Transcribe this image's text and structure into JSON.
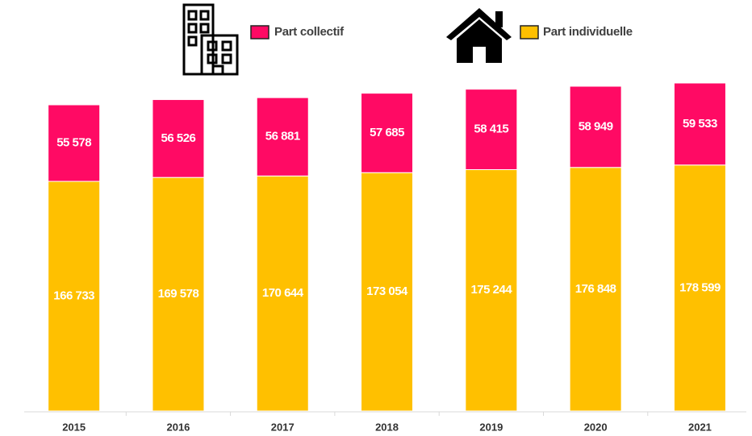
{
  "chart_data": {
    "type": "stacked_bar",
    "categories": [
      "2015",
      "2016",
      "2017",
      "2018",
      "2019",
      "2020",
      "2021"
    ],
    "series": [
      {
        "name": "Part collectif",
        "color": "#ff0a64",
        "values": [
          55578,
          56526,
          56881,
          57685,
          58415,
          58949,
          59533
        ],
        "value_labels": [
          "55 578",
          "56 526",
          "56 881",
          "57 685",
          "58 415",
          "58 949",
          "59 533"
        ]
      },
      {
        "name": "Part individuelle",
        "color": "#ffc000",
        "values": [
          166733,
          169578,
          170644,
          173054,
          175244,
          176848,
          178599
        ],
        "value_labels": [
          "166 733",
          "169 578",
          "170 644",
          "173 054",
          "175 244",
          "176 848",
          "178 599"
        ]
      }
    ]
  }
}
